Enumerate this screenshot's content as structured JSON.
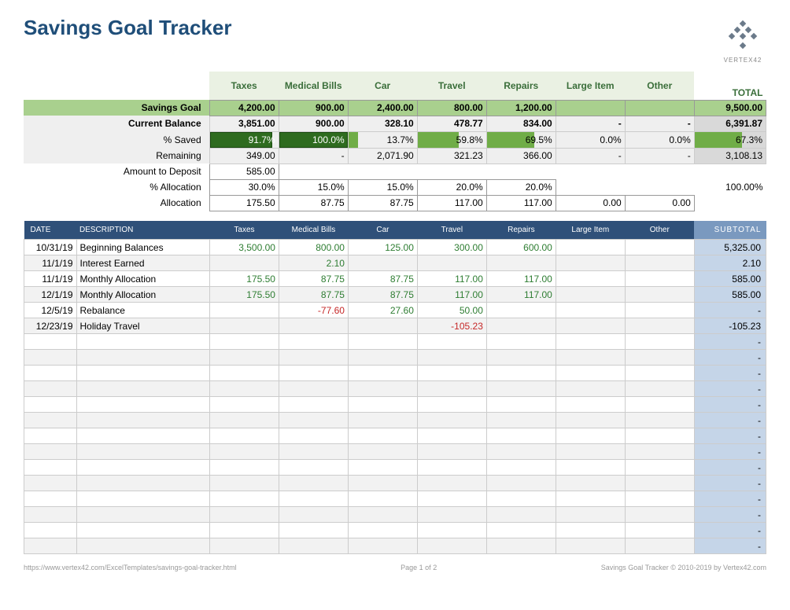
{
  "title": "Savings Goal Tracker",
  "brand": "VERTEX42",
  "colors": {
    "title": "#1f4e79",
    "header_green_bg": "#eaf1e3",
    "header_green_text": "#3a6e3a",
    "goal_row_bg": "#a9d08e",
    "grey_bg": "#efefef",
    "grey_total_bg": "#d9d9d9",
    "ledger_header_bg": "#2f5079",
    "ledger_subtotal_header_bg": "#7a99bf",
    "ledger_subtotal_bg": "#c5d5e8",
    "positive": "#2e7d32",
    "negative": "#c62828",
    "bar_light": "#70ad47",
    "bar_dark": "#2e6b1f"
  },
  "categories": [
    "Taxes",
    "Medical Bills",
    "Car",
    "Travel",
    "Repairs",
    "Large Item",
    "Other"
  ],
  "total_label": "TOTAL",
  "summary": {
    "rows": {
      "goal": {
        "label": "Savings Goal",
        "values": [
          "4,200.00",
          "900.00",
          "2,400.00",
          "800.00",
          "1,200.00",
          "",
          ""
        ],
        "total": "9,500.00"
      },
      "balance": {
        "label": "Current Balance",
        "values": [
          "3,851.00",
          "900.00",
          "328.10",
          "478.77",
          "834.00",
          "-",
          "-"
        ],
        "total": "6,391.87"
      },
      "saved": {
        "label": "% Saved",
        "values": [
          "91.7%",
          "100.0%",
          "13.7%",
          "59.8%",
          "69.5%",
          "0.0%",
          "0.0%"
        ],
        "pcts": [
          91.7,
          100,
          13.7,
          59.8,
          69.5,
          0,
          0
        ],
        "total": "67.3%",
        "total_pct": 67.3
      },
      "remaining": {
        "label": "Remaining",
        "values": [
          "349.00",
          "-",
          "2,071.90",
          "321.23",
          "366.00",
          "-",
          "-"
        ],
        "total": "3,108.13"
      },
      "deposit": {
        "label": "Amount to Deposit",
        "values": [
          "585.00"
        ]
      },
      "pctalloc": {
        "label": "% Allocation",
        "values": [
          "30.0%",
          "15.0%",
          "15.0%",
          "20.0%",
          "20.0%",
          "",
          ""
        ],
        "total": "100.00%"
      },
      "alloc": {
        "label": "Allocation",
        "values": [
          "175.50",
          "87.75",
          "87.75",
          "117.00",
          "117.00",
          "0.00",
          "0.00"
        ]
      }
    }
  },
  "ledger": {
    "headers": {
      "date": "DATE",
      "desc": "DESCRIPTION",
      "subtotal": "SUBTOTAL"
    },
    "rows": [
      {
        "date": "10/31/19",
        "desc": "Beginning Balances",
        "vals": [
          "3,500.00",
          "800.00",
          "125.00",
          "300.00",
          "600.00",
          "",
          ""
        ],
        "signs": [
          1,
          1,
          1,
          1,
          1,
          0,
          0
        ],
        "sub": "5,325.00"
      },
      {
        "date": "11/1/19",
        "desc": "Interest Earned",
        "vals": [
          "",
          "2.10",
          "",
          "",
          "",
          "",
          ""
        ],
        "signs": [
          0,
          1,
          0,
          0,
          0,
          0,
          0
        ],
        "sub": "2.10"
      },
      {
        "date": "11/1/19",
        "desc": "Monthly Allocation",
        "vals": [
          "175.50",
          "87.75",
          "87.75",
          "117.00",
          "117.00",
          "",
          ""
        ],
        "signs": [
          1,
          1,
          1,
          1,
          1,
          0,
          0
        ],
        "sub": "585.00"
      },
      {
        "date": "12/1/19",
        "desc": "Monthly Allocation",
        "vals": [
          "175.50",
          "87.75",
          "87.75",
          "117.00",
          "117.00",
          "",
          ""
        ],
        "signs": [
          1,
          1,
          1,
          1,
          1,
          0,
          0
        ],
        "sub": "585.00"
      },
      {
        "date": "12/5/19",
        "desc": "Rebalance",
        "vals": [
          "",
          "-77.60",
          "27.60",
          "50.00",
          "",
          "",
          ""
        ],
        "signs": [
          0,
          -1,
          1,
          1,
          0,
          0,
          0
        ],
        "sub": "-"
      },
      {
        "date": "12/23/19",
        "desc": "Holiday Travel",
        "vals": [
          "",
          "",
          "",
          "-105.23",
          "",
          "",
          ""
        ],
        "signs": [
          0,
          0,
          0,
          -1,
          0,
          0,
          0
        ],
        "sub": "-105.23"
      }
    ],
    "empty_rows": 14
  },
  "footer": {
    "url": "https://www.vertex42.com/ExcelTemplates/savings-goal-tracker.html",
    "page": "Page 1 of 2",
    "copyright": "Savings Goal Tracker © 2010-2019 by Vertex42.com"
  }
}
